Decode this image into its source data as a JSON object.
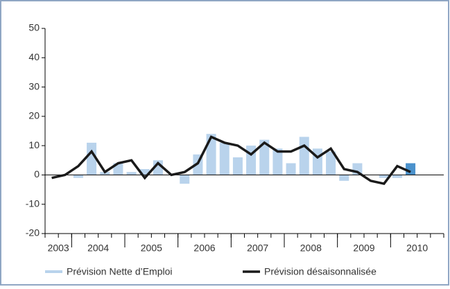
{
  "chart_data": {
    "type": "bar_line",
    "categories": [
      null,
      null,
      null,
      null,
      null,
      null,
      null,
      null,
      null,
      null,
      null,
      null,
      null,
      null,
      null,
      null,
      null,
      null,
      null,
      null,
      null,
      null,
      null,
      null,
      null,
      null,
      null,
      null,
      null,
      null
    ],
    "year_groups": [
      {
        "label": "2003",
        "quarters": 2
      },
      {
        "label": "2004",
        "quarters": 4
      },
      {
        "label": "2005",
        "quarters": 4
      },
      {
        "label": "2006",
        "quarters": 4
      },
      {
        "label": "2007",
        "quarters": 4
      },
      {
        "label": "2008",
        "quarters": 4
      },
      {
        "label": "2009",
        "quarters": 4
      },
      {
        "label": "2010",
        "quarters": 4
      }
    ],
    "series": [
      {
        "name": "Prévision Nette d’Emploi",
        "type": "bar",
        "color": "#b9d3ec",
        "highlight": {
          "index": 27,
          "color": "#4b92cc"
        },
        "values": [
          0,
          0,
          -1,
          11,
          1,
          4,
          1,
          2,
          5,
          0,
          -3,
          7,
          14,
          11,
          6,
          10,
          12,
          9,
          4,
          13,
          9,
          8,
          -2,
          4,
          0,
          -1,
          -1,
          4,
          null,
          null
        ]
      },
      {
        "name": "Prévision désaisonnalisée",
        "type": "line",
        "color": "#1a1a1a",
        "values": [
          -1,
          0,
          3,
          8,
          1,
          4,
          5,
          -1,
          4,
          0,
          1,
          4,
          13,
          11,
          10,
          7,
          11,
          8,
          8,
          10,
          6,
          9,
          2,
          1,
          -2,
          -3,
          3,
          1,
          null,
          null
        ]
      }
    ],
    "ylim": [
      -20,
      50
    ],
    "yticks": [
      -20,
      -10,
      0,
      10,
      20,
      30,
      40,
      50
    ]
  }
}
